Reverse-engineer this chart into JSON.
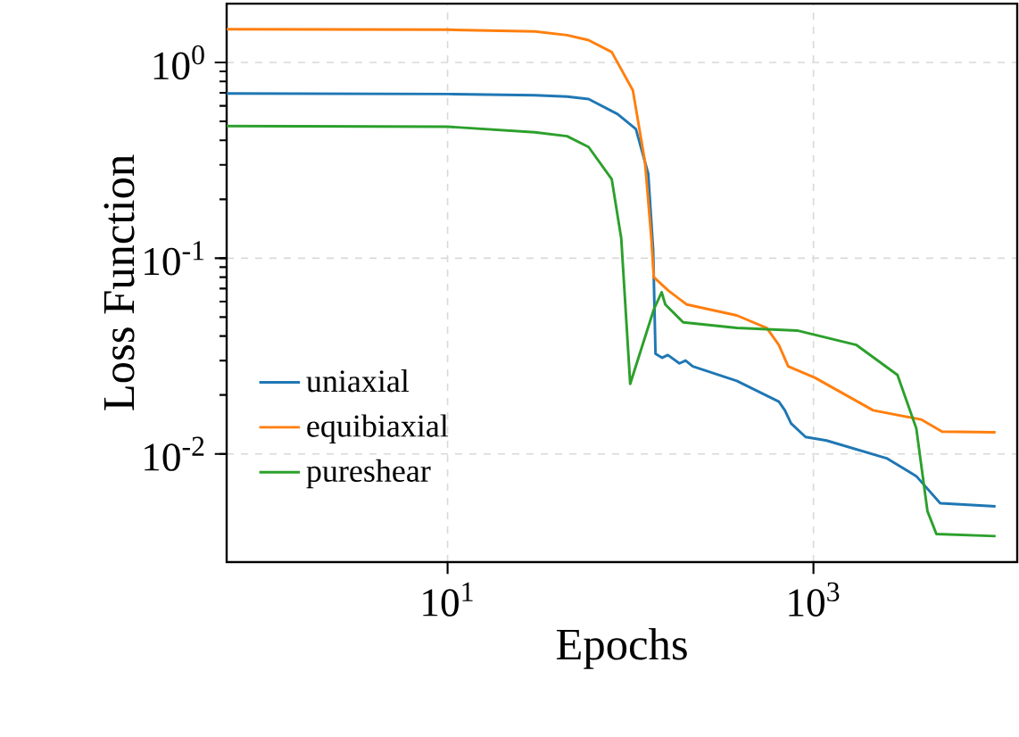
{
  "chart_data": {
    "type": "line",
    "xlabel": "Epochs",
    "ylabel": "Loss Function",
    "log": "xy",
    "xlim": [
      0.62,
      13000
    ],
    "ylim": [
      0.0028,
      2.0
    ],
    "xticks": [
      {
        "value": 10,
        "label": "10$^{1}$"
      },
      {
        "value": 1000,
        "label": "10$^{3}$"
      }
    ],
    "yticks": [
      {
        "value": 0.01,
        "label": "10$^{-2}$"
      },
      {
        "value": 0.1,
        "label": "10$^{-1}$"
      },
      {
        "value": 1,
        "label": "10$^{0}$"
      }
    ],
    "grid": true,
    "legend": "bottom left",
    "marker": "none",
    "line_style": "solid",
    "series": [
      {
        "name": "uniaxial",
        "color": "#1f77b4",
        "x": [
          0.62,
          10,
          30,
          45,
          59,
          85,
          107,
          125,
          133,
          137,
          149,
          160,
          185,
          200,
          219,
          381,
          647,
          698,
          755,
          906,
          1180,
          2510,
          3650,
          4930,
          9900
        ],
        "values": [
          0.695,
          0.69,
          0.68,
          0.67,
          0.65,
          0.545,
          0.457,
          0.27,
          0.11,
          0.0325,
          0.031,
          0.032,
          0.029,
          0.03,
          0.028,
          0.0236,
          0.0185,
          0.0167,
          0.0143,
          0.0122,
          0.0117,
          0.0095,
          0.0077,
          0.0056,
          0.0054
        ]
      },
      {
        "name": "equibiaxial",
        "color": "#ff7f0e",
        "x": [
          0.62,
          10,
          30,
          45,
          59,
          79,
          103,
          120,
          130,
          134,
          149,
          162,
          203,
          381,
          556,
          647,
          728,
          1020,
          2120,
          3870,
          5050,
          9900
        ],
        "values": [
          1.48,
          1.47,
          1.44,
          1.38,
          1.3,
          1.13,
          0.72,
          0.31,
          0.126,
          0.08,
          0.073,
          0.068,
          0.058,
          0.051,
          0.044,
          0.036,
          0.028,
          0.0245,
          0.0167,
          0.015,
          0.013,
          0.0129
        ]
      },
      {
        "name": "pureshear",
        "color": "#2ca02c",
        "x": [
          0.62,
          10,
          30,
          45,
          59,
          79,
          89,
          99.6,
          134,
          148,
          155,
          194,
          381,
          813,
          1720,
          2880,
          3650,
          4200,
          4700,
          9900
        ],
        "values": [
          0.473,
          0.47,
          0.44,
          0.42,
          0.37,
          0.253,
          0.126,
          0.0228,
          0.0546,
          0.067,
          0.058,
          0.047,
          0.044,
          0.0427,
          0.036,
          0.0253,
          0.0135,
          0.0051,
          0.0039,
          0.0038
        ]
      }
    ]
  }
}
